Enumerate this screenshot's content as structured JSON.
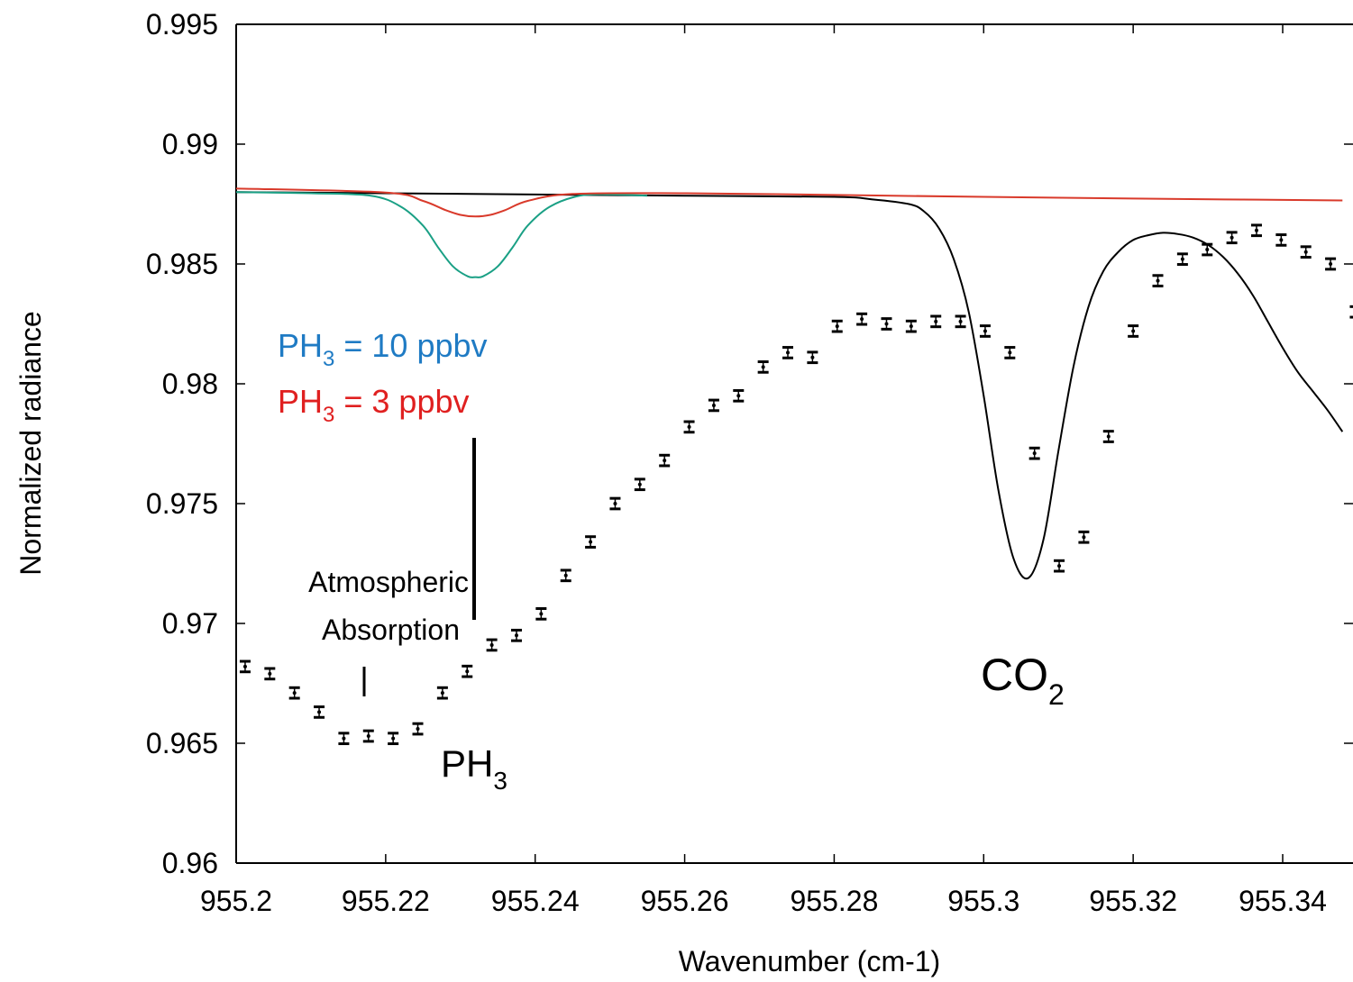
{
  "chart_data": {
    "type": "line",
    "xlabel": "Wavenumber (cm-1)",
    "ylabel": "Normalized radiance",
    "xlim": [
      955.2,
      955.348
    ],
    "ylim": [
      0.96,
      0.995
    ],
    "x_ticks": [
      955.2,
      955.22,
      955.24,
      955.26,
      955.28,
      955.3,
      955.32,
      955.34
    ],
    "x_tick_labels": [
      "955.2",
      "955.22",
      "955.24",
      "955.26",
      "955.28",
      "955.3",
      "955.32",
      "955.34"
    ],
    "y_ticks": [
      0.96,
      0.965,
      0.97,
      0.975,
      0.98,
      0.985,
      0.99,
      0.995
    ],
    "y_tick_labels": [
      "0.96",
      "0.965",
      "0.97",
      "0.975",
      "0.98",
      "0.985",
      "0.99",
      "0.995"
    ],
    "grid": false,
    "series": [
      {
        "kind": "model-co2",
        "color": "#000000",
        "x": [
          955.2,
          955.22,
          955.24,
          955.26,
          955.28,
          955.285,
          955.29,
          955.292,
          955.294,
          955.296,
          955.298,
          955.3,
          955.302,
          955.304,
          955.306,
          955.308,
          955.31,
          955.312,
          955.314,
          955.316,
          955.318,
          955.32,
          955.322,
          955.324,
          955.326,
          955.328,
          955.33,
          955.332,
          955.334,
          955.336,
          955.338,
          955.34,
          955.342,
          955.344,
          955.346,
          955.348
        ],
        "y": [
          0.988,
          0.98795,
          0.9879,
          0.98785,
          0.9878,
          0.9877,
          0.9875,
          0.9872,
          0.9865,
          0.9852,
          0.983,
          0.9795,
          0.9755,
          0.9727,
          0.9719,
          0.9735,
          0.9772,
          0.9807,
          0.9832,
          0.9847,
          0.9855,
          0.986,
          0.9862,
          0.9863,
          0.98625,
          0.9861,
          0.9858,
          0.9853,
          0.9846,
          0.9837,
          0.9826,
          0.9815,
          0.9805,
          0.9797,
          0.9789,
          0.978
        ]
      },
      {
        "kind": "model-ph3-10ppbv",
        "color": "#1aa085",
        "x": [
          955.2,
          955.21,
          955.218,
          955.222,
          955.225,
          955.227,
          955.229,
          955.231,
          955.232,
          955.233,
          955.235,
          955.237,
          955.239,
          955.242,
          955.246,
          955.25,
          955.255
        ],
        "y": [
          0.988,
          0.98795,
          0.98785,
          0.9874,
          0.9866,
          0.9857,
          0.9849,
          0.98448,
          0.98445,
          0.98448,
          0.9849,
          0.9857,
          0.9866,
          0.9874,
          0.98785,
          0.9879,
          0.98785
        ]
      },
      {
        "kind": "model-ph3-3ppbv",
        "color": "#d93a2b",
        "x": [
          955.2,
          955.22,
          955.225,
          955.228,
          955.23,
          955.232,
          955.234,
          955.236,
          955.239,
          955.245,
          955.26,
          955.28,
          955.3,
          955.32,
          955.348
        ],
        "y": [
          0.98815,
          0.98798,
          0.98763,
          0.98725,
          0.98705,
          0.98698,
          0.98705,
          0.98725,
          0.98763,
          0.98792,
          0.98795,
          0.98788,
          0.9878,
          0.98773,
          0.98765
        ]
      }
    ],
    "observations": {
      "kind": "measured-spectrum",
      "color": "#000000",
      "yerr": 0.00022,
      "x": [
        955.2012,
        955.2045,
        955.2078,
        955.2111,
        955.2144,
        955.2177,
        955.221,
        955.2243,
        955.2276,
        955.2309,
        955.2342,
        955.2375,
        955.2408,
        955.2441,
        955.2474,
        955.2507,
        955.254,
        955.2573,
        955.2606,
        955.2639,
        955.2672,
        955.2705,
        955.2738,
        955.2771,
        955.2804,
        955.2837,
        955.287,
        955.2903,
        955.2936,
        955.2969,
        955.3002,
        955.3035,
        955.3068,
        955.3101,
        955.3134,
        955.3167,
        955.32,
        955.3233,
        955.3266,
        955.3299,
        955.3332,
        955.3365,
        955.3398,
        955.3431,
        955.3464
      ],
      "y": [
        0.9682,
        0.9679,
        0.9671,
        0.9663,
        0.9652,
        0.9653,
        0.9652,
        0.9656,
        0.9671,
        0.968,
        0.9691,
        0.9695,
        0.9704,
        0.972,
        0.9734,
        0.975,
        0.9758,
        0.9768,
        0.9782,
        0.9791,
        0.9795,
        0.9807,
        0.9813,
        0.9811,
        0.9824,
        0.9827,
        0.9825,
        0.9824,
        0.9826,
        0.9826,
        0.9822,
        0.9813,
        0.9771,
        0.9724,
        0.9736,
        0.9778,
        0.9822,
        0.9843,
        0.9852,
        0.9856,
        0.9861,
        0.9864,
        0.986,
        0.9855,
        0.985
      ]
    },
    "extra_points": {
      "x": [
        955.3497
      ],
      "y": [
        0.983
      ]
    },
    "annotations": {
      "legend_10": {
        "label": "PH",
        "sub": "3",
        "rest": " = 10 ppbv",
        "color": "#1f7bc4"
      },
      "legend_3": {
        "label": "PH",
        "sub": "3",
        "rest": " = 3 ppbv",
        "color": "#e02020"
      },
      "atmospheric_line1": "Atmospheric",
      "atmospheric_line2": "Absorption",
      "ph3_label": "PH",
      "ph3_sub": "3",
      "co2_label": "CO",
      "co2_sub": "2"
    }
  }
}
